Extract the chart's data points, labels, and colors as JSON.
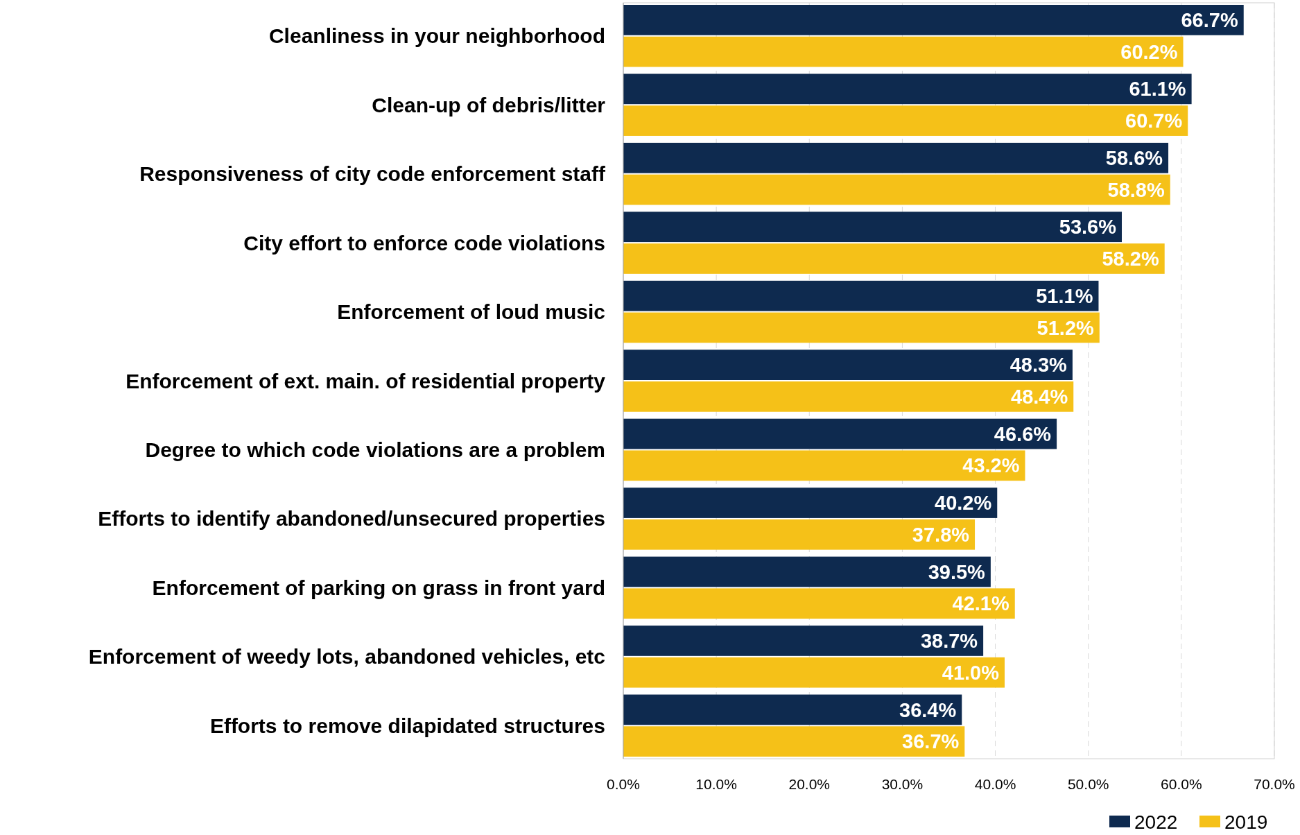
{
  "chart_data": {
    "type": "bar",
    "orientation": "horizontal",
    "categories": [
      "Cleanliness in your neighborhood",
      "Clean-up of debris/litter",
      "Responsiveness of city code enforcement staff",
      "City effort to enforce code violations",
      "Enforcement of loud music",
      "Enforcement of ext. main. of residential property",
      "Degree to which code violations are a problem",
      "Efforts to identify abandoned/unsecured properties",
      "Enforcement of parking on grass in front yard",
      "Enforcement of weedy lots, abandoned vehicles, etc",
      "Efforts to remove dilapidated structures"
    ],
    "series": [
      {
        "name": "2022",
        "color": "#0e2a4f",
        "values": [
          66.7,
          61.1,
          58.6,
          53.6,
          51.1,
          48.3,
          46.6,
          40.2,
          39.5,
          38.7,
          36.4
        ],
        "value_labels": [
          "66.7%",
          "61.1%",
          "58.6%",
          "53.6%",
          "51.1%",
          "48.3%",
          "46.6%",
          "40.2%",
          "39.5%",
          "38.7%",
          "36.4%"
        ]
      },
      {
        "name": "2019",
        "color": "#f5c118",
        "values": [
          60.2,
          60.7,
          58.8,
          58.2,
          51.2,
          48.4,
          43.2,
          37.8,
          42.1,
          41.0,
          36.7
        ],
        "value_labels": [
          "60.2%",
          "60.7%",
          "58.8%",
          "58.2%",
          "51.2%",
          "48.4%",
          "43.2%",
          "37.8%",
          "42.1%",
          "41.0%",
          "36.7%"
        ]
      }
    ],
    "xlim": [
      0,
      70
    ],
    "xticks": [
      {
        "value": 0,
        "label": "0.0%"
      },
      {
        "value": 10,
        "label": "10.0%"
      },
      {
        "value": 20,
        "label": "20.0%"
      },
      {
        "value": 30,
        "label": "30.0%"
      },
      {
        "value": 40,
        "label": "40.0%"
      },
      {
        "value": 50,
        "label": "50.0%"
      },
      {
        "value": 60,
        "label": "60.0%"
      },
      {
        "value": 70,
        "label": "70.0%"
      }
    ],
    "grid": "x",
    "legend": "bottom right"
  }
}
